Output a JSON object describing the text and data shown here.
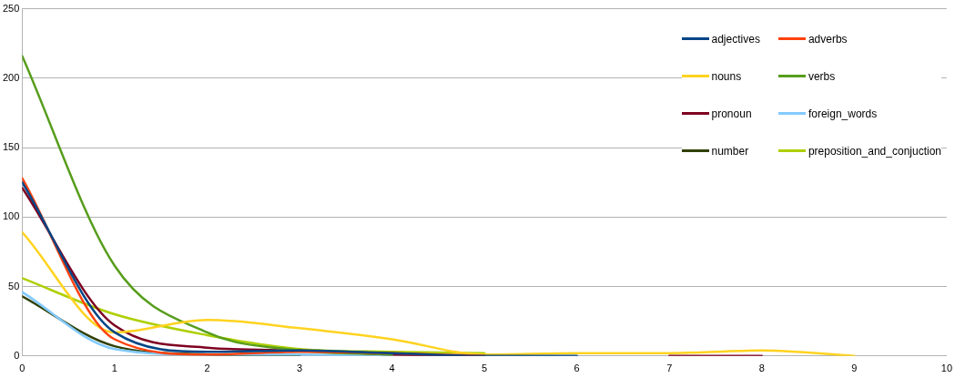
{
  "chart_data": {
    "type": "line",
    "x": [
      0,
      1,
      2,
      3,
      4,
      5,
      6,
      7,
      8,
      9
    ],
    "series": [
      {
        "name": "adjectives",
        "color": "#004586",
        "values": [
          125,
          17,
          3,
          4,
          2,
          0,
          0,
          null,
          null,
          null
        ]
      },
      {
        "name": "adverbs",
        "color": "#ff420e",
        "values": [
          128,
          12,
          1,
          3,
          2,
          0,
          null,
          null,
          null,
          null
        ]
      },
      {
        "name": "nouns",
        "color": "#ffd320",
        "values": [
          89,
          17,
          26,
          20,
          12,
          1,
          2,
          2,
          4,
          0
        ]
      },
      {
        "name": "verbs",
        "color": "#579d1c",
        "values": [
          216,
          65,
          17,
          4,
          1,
          null,
          null,
          null,
          null,
          null
        ]
      },
      {
        "name": "pronoun",
        "color": "#7e0021",
        "values": [
          121,
          22,
          6,
          4,
          1,
          0,
          null,
          0,
          0,
          null
        ]
      },
      {
        "name": "foreign_words",
        "color": "#83caff",
        "values": [
          46,
          5,
          1,
          1,
          0,
          null,
          null,
          null,
          null,
          null
        ]
      },
      {
        "name": "number",
        "color": "#314004",
        "values": [
          43,
          7,
          1,
          0,
          null,
          null,
          null,
          null,
          null,
          null
        ]
      },
      {
        "name": "preposition_and_conjuction",
        "color": "#aecf00",
        "values": [
          56,
          30,
          15,
          5,
          3,
          2,
          null,
          null,
          null,
          null
        ]
      }
    ],
    "xlim": [
      0,
      10
    ],
    "xticks": [
      0,
      1,
      2,
      3,
      4,
      5,
      6,
      7,
      8,
      9,
      10
    ],
    "ylim": [
      0,
      250
    ],
    "yticks": [
      0,
      50,
      100,
      150,
      200,
      250
    ],
    "grid": "y",
    "legend": "top right",
    "marker": "none",
    "line_style": "solid"
  }
}
